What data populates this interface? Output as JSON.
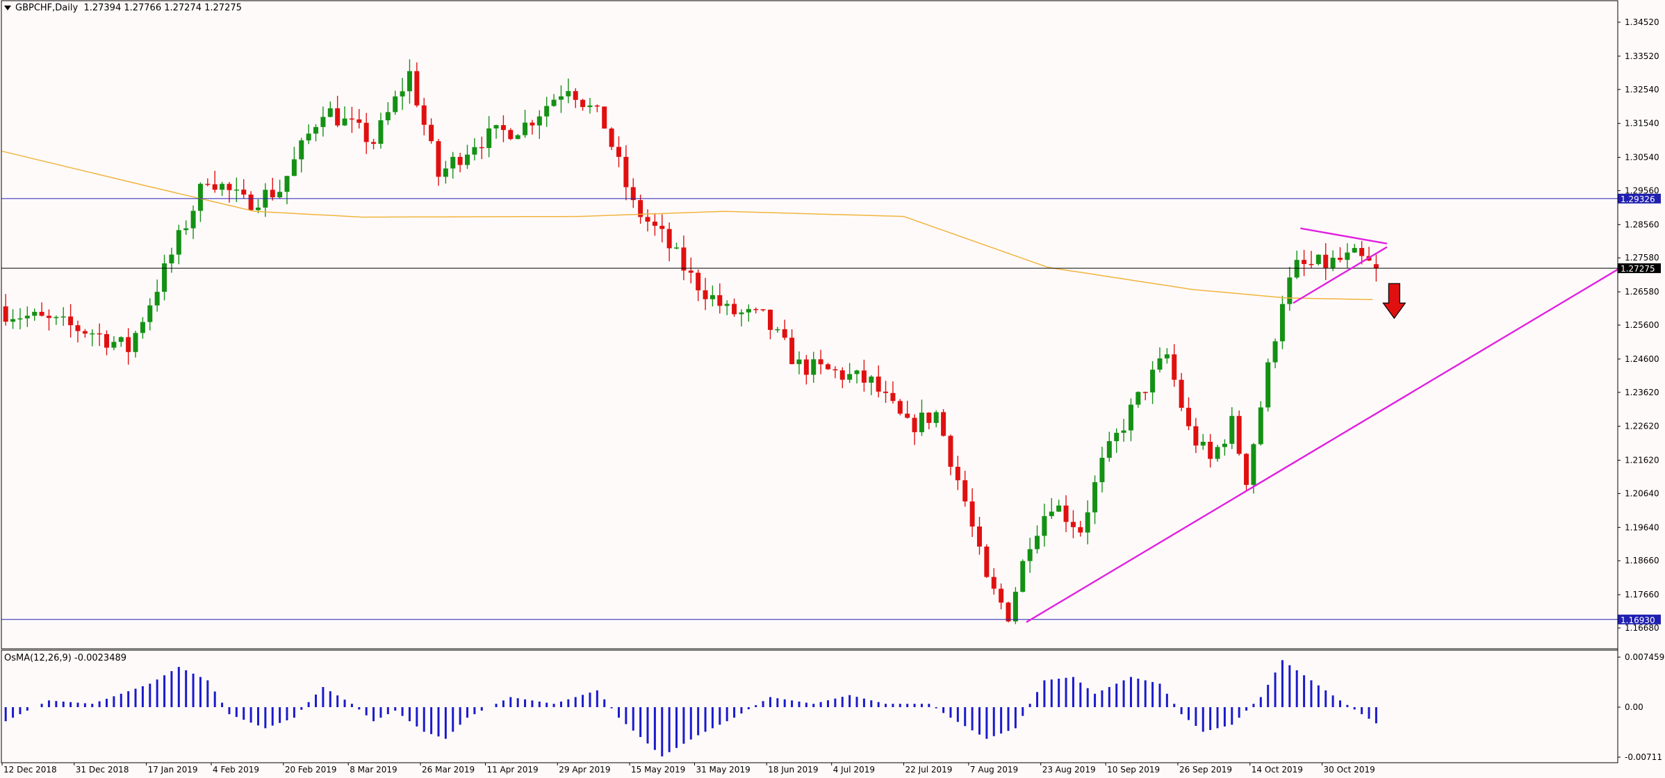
{
  "header": {
    "symbol": "GBPCHF,Daily",
    "ohlc": "1.27394 1.27766 1.27274 1.27275"
  },
  "osma": {
    "label": "OsMA(12,26,9) -0.0023489",
    "axis_labels": [
      "0.0074591",
      "0.00",
      "-0.00711"
    ]
  },
  "colors": {
    "bull": "#149114",
    "bear": "#e01010",
    "ma": "#f0b43c",
    "trend": "#e020e0",
    "hline": "#2020b0",
    "osma": "#1a1acc",
    "arrow": "#e01010"
  },
  "chart_data": {
    "type": "candlestick",
    "symbol": "GBPCHF",
    "timeframe": "Daily",
    "price_axis": [
      "1.34520",
      "1.33520",
      "1.32540",
      "1.31540",
      "1.30540",
      "1.29560",
      "1.28560",
      "1.27580",
      "1.26580",
      "1.25600",
      "1.24600",
      "1.23620",
      "1.22620",
      "1.21620",
      "1.20640",
      "1.19640",
      "1.18660",
      "1.17660",
      "1.16680"
    ],
    "price_range": [
      1.1648,
      1.3485
    ],
    "date_labels": [
      "12 Dec 2018",
      "31 Dec 2018",
      "17 Jan 2019",
      "4 Feb 2019",
      "20 Feb 2019",
      "8 Mar 2019",
      "26 Mar 2019",
      "11 Apr 2019",
      "29 Apr 2019",
      "15 May 2019",
      "31 May 2019",
      "18 Jun 2019",
      "4 Jul 2019",
      "22 Jul 2019",
      "7 Aug 2019",
      "23 Aug 2019",
      "10 Sep 2019",
      "26 Sep 2019",
      "14 Oct 2019",
      "30 Oct 2019"
    ],
    "close_path_anchors": [
      {
        "bar": 0,
        "close": 1.26
      },
      {
        "bar": 12,
        "close": 1.254
      },
      {
        "bar": 17,
        "close": 1.249
      },
      {
        "bar": 22,
        "close": 1.272
      },
      {
        "bar": 28,
        "close": 1.3
      },
      {
        "bar": 33,
        "close": 1.292
      },
      {
        "bar": 38,
        "close": 1.296
      },
      {
        "bar": 44,
        "close": 1.32
      },
      {
        "bar": 51,
        "close": 1.31
      },
      {
        "bar": 56,
        "close": 1.33
      },
      {
        "bar": 60,
        "close": 1.3
      },
      {
        "bar": 65,
        "close": 1.31
      },
      {
        "bar": 72,
        "close": 1.315
      },
      {
        "bar": 78,
        "close": 1.327
      },
      {
        "bar": 83,
        "close": 1.315
      },
      {
        "bar": 87,
        "close": 1.291
      },
      {
        "bar": 91,
        "close": 1.282
      },
      {
        "bar": 95,
        "close": 1.27
      },
      {
        "bar": 100,
        "close": 1.26
      },
      {
        "bar": 105,
        "close": 1.258
      },
      {
        "bar": 110,
        "close": 1.244
      },
      {
        "bar": 115,
        "close": 1.242
      },
      {
        "bar": 120,
        "close": 1.239
      },
      {
        "bar": 125,
        "close": 1.226
      },
      {
        "bar": 129,
        "close": 1.23
      },
      {
        "bar": 133,
        "close": 1.204
      },
      {
        "bar": 136,
        "close": 1.18
      },
      {
        "bar": 139,
        "close": 1.171
      },
      {
        "bar": 142,
        "close": 1.193
      },
      {
        "bar": 145,
        "close": 1.204
      },
      {
        "bar": 149,
        "close": 1.196
      },
      {
        "bar": 152,
        "close": 1.215
      },
      {
        "bar": 155,
        "close": 1.227
      },
      {
        "bar": 158,
        "close": 1.238
      },
      {
        "bar": 161,
        "close": 1.247
      },
      {
        "bar": 164,
        "close": 1.225
      },
      {
        "bar": 167,
        "close": 1.216
      },
      {
        "bar": 170,
        "close": 1.227
      },
      {
        "bar": 172,
        "close": 1.211
      },
      {
        "bar": 175,
        "close": 1.243
      },
      {
        "bar": 177,
        "close": 1.264
      },
      {
        "bar": 179,
        "close": 1.273
      },
      {
        "bar": 183,
        "close": 1.274
      },
      {
        "bar": 187,
        "close": 1.276
      },
      {
        "bar": 190,
        "close": 1.2728
      }
    ],
    "moving_average": [
      {
        "bar": 0,
        "value": 1.3072
      },
      {
        "bar": 20,
        "value": 1.297
      },
      {
        "bar": 35,
        "value": 1.2895
      },
      {
        "bar": 50,
        "value": 1.2878
      },
      {
        "bar": 80,
        "value": 1.288
      },
      {
        "bar": 100,
        "value": 1.2895
      },
      {
        "bar": 125,
        "value": 1.288
      },
      {
        "bar": 145,
        "value": 1.273
      },
      {
        "bar": 165,
        "value": 1.2665
      },
      {
        "bar": 178,
        "value": 1.264
      },
      {
        "bar": 190,
        "value": 1.2635
      }
    ],
    "horizontal_lines": [
      {
        "price": 1.29326,
        "label": "1.29326"
      },
      {
        "price": 1.27275,
        "label": "1.27275"
      },
      {
        "price": 1.1693,
        "label": "1.16930"
      }
    ],
    "trendlines": [
      {
        "from": {
          "bar": 142,
          "price": 1.1685
        },
        "to": {
          "bar": 224,
          "price": 1.2724
        }
      },
      {
        "from": {
          "bar": 180,
          "price": 1.2845
        },
        "to": {
          "bar": 192,
          "price": 1.28
        }
      },
      {
        "from": {
          "bar": 179,
          "price": 1.2625
        },
        "to": {
          "bar": 192,
          "price": 1.279
        }
      }
    ],
    "annotation": {
      "type": "down-arrow",
      "bar": 193,
      "price": 1.258
    },
    "osma_range": [
      -0.00711,
      0.0074591
    ],
    "osma_anchors": [
      {
        "bar": 0,
        "value": -0.002
      },
      {
        "bar": 6,
        "value": 0.001
      },
      {
        "bar": 12,
        "value": 0.0005
      },
      {
        "bar": 20,
        "value": 0.0035
      },
      {
        "bar": 24,
        "value": 0.006
      },
      {
        "bar": 28,
        "value": 0.004
      },
      {
        "bar": 31,
        "value": -0.001
      },
      {
        "bar": 36,
        "value": -0.003
      },
      {
        "bar": 40,
        "value": -0.0015
      },
      {
        "bar": 44,
        "value": 0.003
      },
      {
        "bar": 48,
        "value": 0.0005
      },
      {
        "bar": 51,
        "value": -0.002
      },
      {
        "bar": 54,
        "value": -0.0005
      },
      {
        "bar": 58,
        "value": -0.0035
      },
      {
        "bar": 61,
        "value": -0.0045
      },
      {
        "bar": 64,
        "value": -0.0015
      },
      {
        "bar": 70,
        "value": 0.0015
      },
      {
        "bar": 76,
        "value": 0.0005
      },
      {
        "bar": 82,
        "value": 0.0025
      },
      {
        "bar": 85,
        "value": -0.0015
      },
      {
        "bar": 91,
        "value": -0.007
      },
      {
        "bar": 96,
        "value": -0.004
      },
      {
        "bar": 101,
        "value": -0.0015
      },
      {
        "bar": 106,
        "value": 0.0015
      },
      {
        "bar": 112,
        "value": 0.0005
      },
      {
        "bar": 117,
        "value": 0.0018
      },
      {
        "bar": 122,
        "value": 0.0005
      },
      {
        "bar": 128,
        "value": 0.0005
      },
      {
        "bar": 131,
        "value": -0.0015
      },
      {
        "bar": 136,
        "value": -0.0045
      },
      {
        "bar": 140,
        "value": -0.003
      },
      {
        "bar": 144,
        "value": 0.004
      },
      {
        "bar": 148,
        "value": 0.0045
      },
      {
        "bar": 151,
        "value": 0.002
      },
      {
        "bar": 156,
        "value": 0.0045
      },
      {
        "bar": 160,
        "value": 0.0035
      },
      {
        "bar": 163,
        "value": -0.001
      },
      {
        "bar": 166,
        "value": -0.0035
      },
      {
        "bar": 170,
        "value": -0.0025
      },
      {
        "bar": 174,
        "value": 0.0015
      },
      {
        "bar": 177,
        "value": 0.007
      },
      {
        "bar": 181,
        "value": 0.004
      },
      {
        "bar": 185,
        "value": 0.001
      },
      {
        "bar": 188,
        "value": -0.001
      },
      {
        "bar": 190,
        "value": -0.0023
      }
    ]
  }
}
